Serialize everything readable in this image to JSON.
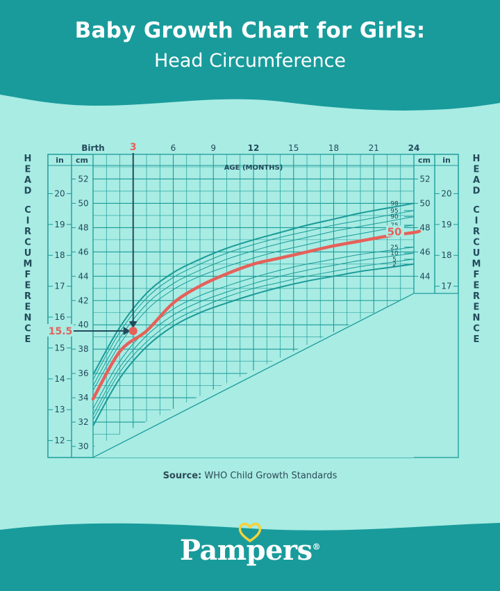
{
  "header": {
    "title": "Baby Growth Chart for Girls:",
    "subtitle": "Head Circumference"
  },
  "source": {
    "label": "Source:",
    "text": "WHO Child Growth Standards"
  },
  "brand": {
    "name": "Pampers",
    "registered": "®"
  },
  "colors": {
    "header_bg": "#199b9b",
    "panel_bg": "#a8ece4",
    "grid": "#1a9a98",
    "highlight": "#e5615a",
    "label_dark": "#234a5a"
  },
  "chart_data": {
    "type": "line",
    "xlabel": "AGE (MONTHS)",
    "ylabel": "HEAD CIRCUMFERENCE",
    "xlim": [
      0,
      24
    ],
    "ylim_cm": [
      30,
      53
    ],
    "x_ticks": [
      {
        "value": 0,
        "label": "Birth"
      },
      {
        "value": 3,
        "label": "3"
      },
      {
        "value": 6,
        "label": "6"
      },
      {
        "value": 9,
        "label": "9"
      },
      {
        "value": 12,
        "label": "12"
      },
      {
        "value": 15,
        "label": "15"
      },
      {
        "value": 18,
        "label": "18"
      },
      {
        "value": 21,
        "label": "21"
      },
      {
        "value": 24,
        "label": "24"
      }
    ],
    "unit_cm": "cm",
    "unit_in": "in",
    "cm_ticks_left": [
      30,
      32,
      34,
      36,
      38,
      40,
      42,
      44,
      46,
      48,
      50,
      52
    ],
    "cm_ticks_right": [
      44,
      46,
      48,
      50,
      52
    ],
    "in_ticks_left": [
      12,
      13,
      14,
      15,
      16,
      17,
      18,
      19,
      20
    ],
    "in_ticks_right": [
      17,
      18,
      19,
      20
    ],
    "percentiles": [
      {
        "label": "98",
        "values": [
          35.9,
          39.8,
          42.6,
          44.3,
          45.4,
          46.3,
          47.0,
          47.6,
          48.2,
          48.7,
          49.2,
          49.6,
          50.0
        ]
      },
      {
        "label": "95",
        "values": [
          35.5,
          39.4,
          42.2,
          43.9,
          45.0,
          45.9,
          46.6,
          47.2,
          47.7,
          48.2,
          48.6,
          49.0,
          49.4
        ]
      },
      {
        "label": "90",
        "values": [
          35.0,
          38.9,
          41.7,
          43.4,
          44.5,
          45.4,
          46.1,
          46.7,
          47.2,
          47.7,
          48.1,
          48.5,
          48.9
        ]
      },
      {
        "label": "75",
        "values": [
          34.6,
          38.4,
          41.2,
          42.9,
          44.0,
          44.8,
          45.5,
          46.1,
          46.6,
          47.1,
          47.5,
          47.9,
          48.2
        ]
      },
      {
        "label": "50",
        "values": [
          33.9,
          37.8,
          39.5,
          41.8,
          43.2,
          44.2,
          45.0,
          45.5,
          46.0,
          46.5,
          46.9,
          47.3,
          47.6
        ]
      },
      {
        "label": "25",
        "values": [
          33.1,
          37.0,
          39.6,
          41.3,
          42.4,
          43.2,
          43.9,
          44.5,
          45.0,
          45.4,
          45.8,
          46.1,
          46.4
        ]
      },
      {
        "label": "10",
        "values": [
          32.6,
          36.5,
          39.1,
          40.8,
          41.9,
          42.7,
          43.4,
          44.0,
          44.5,
          44.9,
          45.3,
          45.6,
          45.9
        ]
      },
      {
        "label": "5",
        "values": [
          32.2,
          36.1,
          38.6,
          40.3,
          41.4,
          42.3,
          43.0,
          43.5,
          44.0,
          44.4,
          44.8,
          45.1,
          45.4
        ]
      },
      {
        "label": "2",
        "values": [
          31.7,
          35.6,
          38.2,
          39.9,
          41.0,
          41.8,
          42.5,
          43.1,
          43.6,
          44.0,
          44.4,
          44.7,
          45.0
        ]
      }
    ],
    "sample_months": [
      0,
      2,
      4,
      6,
      8,
      10,
      12,
      14,
      16,
      18,
      20,
      22,
      24
    ],
    "highlight": {
      "percentile_label": "50",
      "point_age_months": 3,
      "point_value_cm": 39.5,
      "point_value_in": 15.5,
      "age_label": "3",
      "inch_label": "15.5"
    }
  }
}
